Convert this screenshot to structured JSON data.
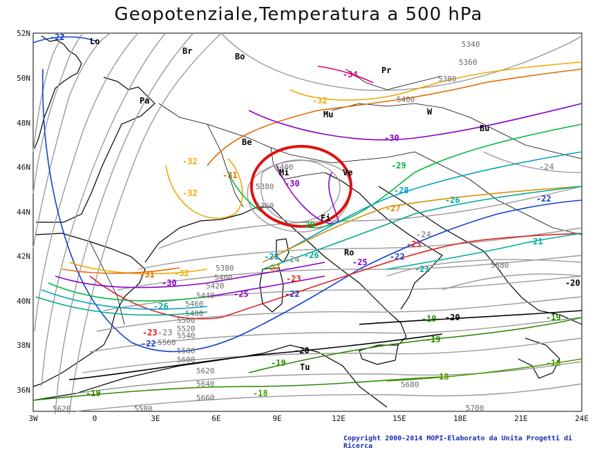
{
  "title": "Geopotenziale,Temperatura a 500 hPa",
  "copyright": "Copyright 2000-2014 MOPI-Elaborato da Unita Progetti di Ricerca",
  "axes": {
    "lat_ticks": [
      "52N",
      "50N",
      "48N",
      "46N",
      "44N",
      "42N",
      "40N",
      "38N",
      "36N"
    ],
    "lon_ticks": [
      "3W",
      "0",
      "3E",
      "6E",
      "9E",
      "12E",
      "15E",
      "18E",
      "21E",
      "24E"
    ]
  },
  "city_labels": [
    "Lo",
    "Br",
    "Bo",
    "Pa",
    "Mu",
    "Pr",
    "W",
    "Bu",
    "Be",
    "Mi",
    "Ve",
    "Fi",
    "Ro",
    "Tu"
  ],
  "contour_colors": {
    "geopotential": "#9a9a9a",
    "t_-34": "#d4007a",
    "t_-32": "#f0a800",
    "t_-31": "#e06a00",
    "t_-30": "#8a00c8",
    "t_-29": "#00b83a",
    "t_-28": "#00a0c8",
    "t_-27": "#d49000",
    "t_-26": "#00a890",
    "t_-25": "#8a00c8",
    "t_-23": "#e02020",
    "t_-22": "#1040d0",
    "t_-21": "#00b0a0",
    "t_-20": "#000000",
    "t_-19": "#2a8a00",
    "t_-18": "#4a9a00",
    "highlight_circle": "#e01010"
  },
  "geopotential_labels": [
    "5340",
    "5360",
    "5380",
    "5400",
    "5400",
    "5380",
    "5360",
    "5380",
    "5400",
    "5420",
    "5440",
    "5460",
    "5480",
    "5500",
    "5520",
    "5540",
    "5560",
    "5580",
    "5600",
    "5620",
    "5640",
    "5660",
    "5680",
    "5680",
    "5700",
    "5580",
    "5620"
  ],
  "temperature_labels": [
    "-22",
    "-34",
    "-32",
    "-30",
    "-32",
    "-31",
    "-32",
    "-30",
    "-29",
    "-28",
    "-27",
    "-26",
    "-22",
    "-23",
    "-21",
    "-32",
    "-31",
    "-30",
    "-29",
    "-28",
    "-27",
    "-26",
    "-25",
    "-23",
    "-22",
    "-24",
    "-24",
    "-26",
    "-25",
    "-23",
    "-22",
    "-21",
    "-20",
    "-19",
    "-19",
    "-19",
    "-18",
    "-20",
    "-19",
    "-18",
    "-19",
    "-18",
    "-20",
    "-24",
    "-22",
    "-23"
  ]
}
